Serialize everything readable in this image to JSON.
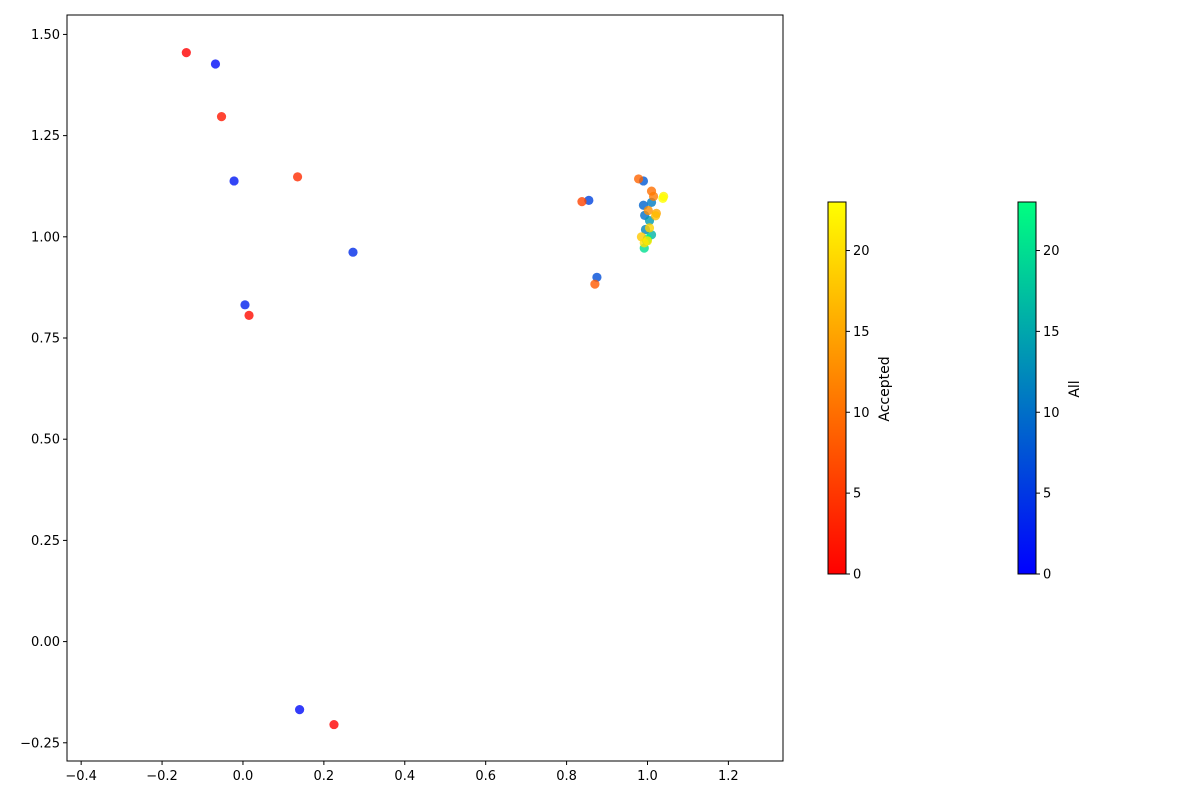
{
  "chart_data": {
    "type": "scatter",
    "title": "",
    "xlabel": "",
    "ylabel": "",
    "xlim": [
      -0.435,
      1.335
    ],
    "ylim": [
      -0.295,
      1.548
    ],
    "xticks": [
      -0.4,
      -0.2,
      0.0,
      0.2,
      0.4,
      0.6,
      0.8,
      1.0,
      1.2
    ],
    "yticks": [
      -0.25,
      0.0,
      0.25,
      0.5,
      0.75,
      1.0,
      1.25,
      1.5
    ],
    "xtick_labels": [
      "−0.4",
      "−0.2",
      "0.0",
      "0.2",
      "0.4",
      "0.6",
      "0.8",
      "1.0",
      "1.2"
    ],
    "ytick_labels": [
      "−0.25",
      "0.00",
      "0.25",
      "0.50",
      "0.75",
      "1.00",
      "1.25",
      "1.50"
    ],
    "grid": false,
    "series": [
      {
        "name": "All",
        "colormap": "winter",
        "points": [
          {
            "x": -0.068,
            "y": 1.427,
            "c": 1
          },
          {
            "x": -0.022,
            "y": 1.138,
            "c": 2
          },
          {
            "x": 0.005,
            "y": 0.832,
            "c": 3
          },
          {
            "x": 0.14,
            "y": -0.168,
            "c": 1
          },
          {
            "x": 0.272,
            "y": 0.962,
            "c": 4
          },
          {
            "x": 0.855,
            "y": 1.09,
            "c": 6
          },
          {
            "x": 0.875,
            "y": 0.9,
            "c": 7
          },
          {
            "x": 0.99,
            "y": 1.138,
            "c": 8
          },
          {
            "x": 0.99,
            "y": 1.078,
            "c": 9
          },
          {
            "x": 0.993,
            "y": 1.053,
            "c": 10
          },
          {
            "x": 1.01,
            "y": 1.085,
            "c": 11
          },
          {
            "x": 0.995,
            "y": 1.018,
            "c": 12
          },
          {
            "x": 1.005,
            "y": 1.04,
            "c": 14
          },
          {
            "x": 1.01,
            "y": 1.005,
            "c": 16
          },
          {
            "x": 0.998,
            "y": 0.99,
            "c": 18
          },
          {
            "x": 0.992,
            "y": 0.972,
            "c": 20
          },
          {
            "x": 1.0,
            "y": 0.995,
            "c": 22
          }
        ]
      },
      {
        "name": "Accepted",
        "colormap": "autumn",
        "points": [
          {
            "x": -0.14,
            "y": 1.455,
            "c": 0
          },
          {
            "x": -0.053,
            "y": 1.297,
            "c": 2
          },
          {
            "x": 0.015,
            "y": 0.806,
            "c": 1
          },
          {
            "x": 0.135,
            "y": 1.148,
            "c": 4
          },
          {
            "x": 0.225,
            "y": -0.205,
            "c": 0
          },
          {
            "x": 0.838,
            "y": 1.087,
            "c": 6
          },
          {
            "x": 0.87,
            "y": 0.883,
            "c": 8
          },
          {
            "x": 0.978,
            "y": 1.143,
            "c": 9
          },
          {
            "x": 1.01,
            "y": 1.113,
            "c": 10
          },
          {
            "x": 1.015,
            "y": 1.1,
            "c": 11
          },
          {
            "x": 1.002,
            "y": 1.065,
            "c": 13
          },
          {
            "x": 1.022,
            "y": 1.058,
            "c": 15
          },
          {
            "x": 1.02,
            "y": 1.052,
            "c": 17
          },
          {
            "x": 1.005,
            "y": 1.022,
            "c": 19
          },
          {
            "x": 0.985,
            "y": 1.0,
            "c": 18
          },
          {
            "x": 0.992,
            "y": 0.985,
            "c": 20
          },
          {
            "x": 1.04,
            "y": 1.1,
            "c": 22
          },
          {
            "x": 1.038,
            "y": 1.095,
            "c": 23
          },
          {
            "x": 1.0,
            "y": 0.99,
            "c": 21
          }
        ]
      }
    ],
    "colorbars": [
      {
        "label": "Accepted",
        "colormap": "autumn",
        "range": [
          0,
          23
        ],
        "ticks": [
          0,
          5,
          10,
          15,
          20
        ]
      },
      {
        "label": "All",
        "colormap": "winter",
        "range": [
          0,
          23
        ],
        "ticks": [
          0,
          5,
          10,
          15,
          20
        ]
      }
    ]
  }
}
